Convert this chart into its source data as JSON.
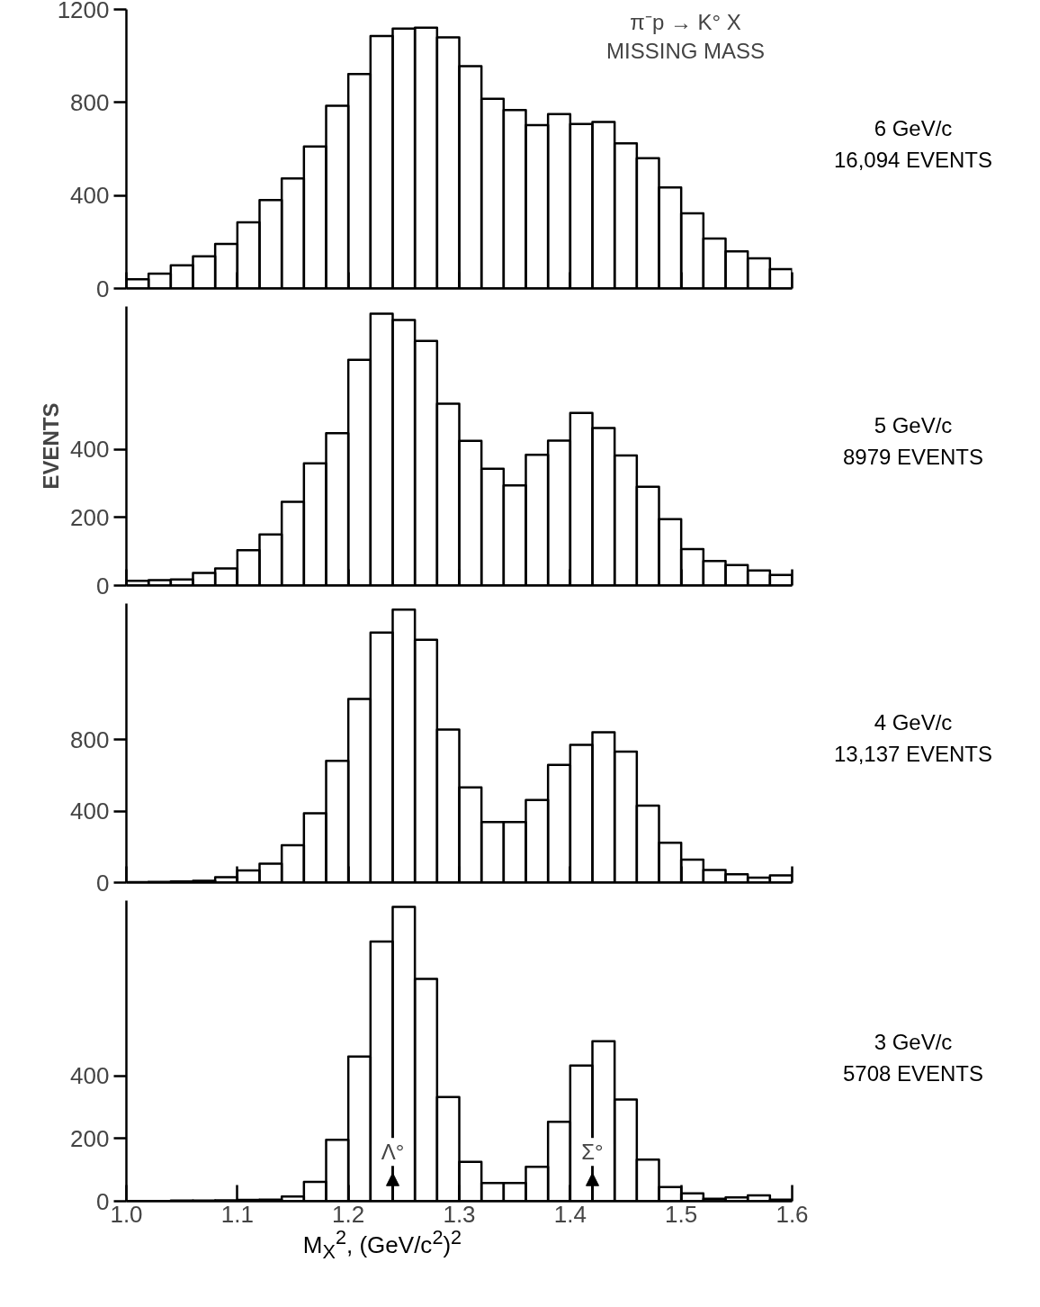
{
  "chart_data": [
    {
      "type": "histogram",
      "title": "π⁻p → K° X",
      "subtitle": "MISSING MASS",
      "annotations": [
        "16,094 EVENTS"
      ],
      "bins": [
        1.0,
        1.02,
        1.04,
        1.06,
        1.08,
        1.1,
        1.12,
        1.14,
        1.16,
        1.18,
        1.2,
        1.22,
        1.24,
        1.26,
        1.28,
        1.3,
        1.32,
        1.34,
        1.36,
        1.38,
        1.4,
        1.42,
        1.44,
        1.46,
        1.48,
        1.5,
        1.52,
        1.54,
        1.56,
        1.58,
        1.6
      ],
      "series": [
        {
          "name": "6 GeV/c",
          "color": "#000000",
          "values": [
            40,
            64,
            100,
            138,
            192,
            285,
            380,
            473,
            611,
            786,
            922,
            1086,
            1118,
            1122,
            1080,
            956,
            816,
            767,
            703,
            750,
            707,
            716,
            624,
            560,
            435,
            323,
            215,
            160,
            130,
            83
          ]
        }
      ],
      "xlim": [
        1.0,
        1.6
      ],
      "xticks": [
        {
          "value": 1.0,
          "label": null
        },
        {
          "value": 1.1,
          "label": null
        },
        {
          "value": 1.2,
          "label": null
        },
        {
          "value": 1.3,
          "label": null
        },
        {
          "value": 1.4,
          "label": null
        },
        {
          "value": 1.5,
          "label": null
        },
        {
          "value": 1.6,
          "label": null
        }
      ],
      "ylim": [
        0,
        1200
      ],
      "yticks": [
        0,
        400,
        800,
        1200
      ],
      "tick_labels": "y",
      "grid": false
    },
    {
      "type": "histogram",
      "ylabel": "EVENTS",
      "annotations": [
        "8979 EVENTS"
      ],
      "bins": [
        1.0,
        1.02,
        1.04,
        1.06,
        1.08,
        1.1,
        1.12,
        1.14,
        1.16,
        1.18,
        1.2,
        1.22,
        1.24,
        1.26,
        1.28,
        1.3,
        1.32,
        1.34,
        1.36,
        1.38,
        1.4,
        1.42,
        1.44,
        1.46,
        1.48,
        1.5,
        1.52,
        1.54,
        1.56,
        1.58,
        1.6
      ],
      "series": [
        {
          "name": "5 GeV/c",
          "color": "#000000",
          "values": [
            14,
            16,
            18,
            37,
            50,
            104,
            150,
            246,
            359,
            448,
            663,
            799,
            780,
            719,
            534,
            425,
            343,
            294,
            384,
            426,
            507,
            463,
            382,
            290,
            195,
            107,
            72,
            60,
            44,
            31
          ]
        }
      ],
      "xlim": [
        1.0,
        1.6
      ],
      "xticks": [
        {
          "value": 1.0,
          "label": null
        },
        {
          "value": 1.1,
          "label": null
        },
        {
          "value": 1.2,
          "label": null
        },
        {
          "value": 1.3,
          "label": null
        },
        {
          "value": 1.4,
          "label": null
        },
        {
          "value": 1.5,
          "label": null
        },
        {
          "value": 1.6,
          "label": null
        }
      ],
      "ylim": [
        0,
        820
      ],
      "yticks": [
        0,
        200,
        400
      ],
      "tick_labels": "y",
      "grid": false
    },
    {
      "type": "histogram",
      "annotations": [
        "13,137 EVENTS"
      ],
      "bins": [
        1.0,
        1.02,
        1.04,
        1.06,
        1.08,
        1.1,
        1.12,
        1.14,
        1.16,
        1.18,
        1.2,
        1.22,
        1.24,
        1.26,
        1.28,
        1.3,
        1.32,
        1.34,
        1.36,
        1.38,
        1.4,
        1.42,
        1.44,
        1.46,
        1.48,
        1.5,
        1.52,
        1.54,
        1.56,
        1.58,
        1.6
      ],
      "series": [
        {
          "name": "4 GeV/c",
          "color": "#000000",
          "values": [
            3,
            4,
            6,
            10,
            30,
            68,
            106,
            209,
            387,
            681,
            1026,
            1398,
            1526,
            1358,
            855,
            532,
            338,
            338,
            462,
            658,
            770,
            841,
            732,
            430,
            223,
            128,
            70,
            47,
            28,
            40
          ]
        }
      ],
      "xlim": [
        1.0,
        1.6
      ],
      "xticks": [
        {
          "value": 1.0,
          "label": null
        },
        {
          "value": 1.1,
          "label": null
        },
        {
          "value": 1.2,
          "label": null
        },
        {
          "value": 1.3,
          "label": null
        },
        {
          "value": 1.4,
          "label": null
        },
        {
          "value": 1.5,
          "label": null
        },
        {
          "value": 1.6,
          "label": null
        }
      ],
      "ylim": [
        0,
        1560
      ],
      "yticks": [
        0,
        400,
        800
      ],
      "tick_labels": "y",
      "grid": false
    },
    {
      "type": "histogram",
      "xlabel": "M$_{X}$$^{2}$, (GeV/c$^{2}$)$^{2}$",
      "annotations": [
        "5708 EVENTS",
        {
          "text": "Λ°",
          "x": 1.24,
          "y": 90
        },
        {
          "text": "Σ°",
          "x": 1.42,
          "y": 90
        }
      ],
      "bins": [
        1.0,
        1.02,
        1.04,
        1.06,
        1.08,
        1.1,
        1.12,
        1.14,
        1.16,
        1.18,
        1.2,
        1.22,
        1.24,
        1.26,
        1.28,
        1.3,
        1.32,
        1.34,
        1.36,
        1.38,
        1.4,
        1.42,
        1.44,
        1.46,
        1.48,
        1.5,
        1.52,
        1.54,
        1.56,
        1.58,
        1.6
      ],
      "series": [
        {
          "name": "3 GeV/c",
          "color": "#000000",
          "values": [
            1,
            1,
            2,
            2,
            3,
            4,
            5,
            15,
            62,
            196,
            462,
            829,
            940,
            710,
            333,
            126,
            58,
            58,
            110,
            254,
            433,
            511,
            325,
            133,
            45,
            25,
            8,
            12,
            19,
            5
          ]
        }
      ],
      "xlim": [
        1.0,
        1.6
      ],
      "xticks": [
        {
          "value": 1.0,
          "label": "1.0"
        },
        1.1,
        1.2,
        1.3,
        1.4,
        1.5,
        1.6
      ],
      "ylim": [
        0,
        960
      ],
      "yticks": [
        0,
        200,
        400
      ],
      "grid": false
    }
  ]
}
